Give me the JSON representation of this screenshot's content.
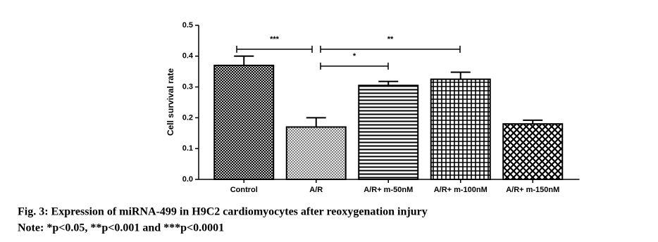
{
  "chart_data": {
    "type": "bar",
    "y_label": "Cell survival rate",
    "categories": [
      "Control",
      "A/R",
      "A/R+ m-50nM",
      "A/R+ m-100nM",
      "A/R+ m-150nM"
    ],
    "values": [
      0.37,
      0.17,
      0.305,
      0.325,
      0.18
    ],
    "errors": [
      0.03,
      0.03,
      0.013,
      0.023,
      0.012
    ],
    "color": "#000000",
    "ylim": [
      0,
      0.5
    ],
    "yticks": [
      {
        "value": 0,
        "label": "0.0"
      },
      0.1,
      0.2,
      0.3,
      0.4,
      0.5
    ],
    "annotations": [
      "***",
      "**",
      "*"
    ]
  },
  "caption": {
    "title": "Fig. 3: Expression of miRNA-499 in H9C2 cardiomyocytes after reoxygenation injury",
    "note": "Note: *p<0.05, **p<0.001 and ***p<0.0001"
  }
}
